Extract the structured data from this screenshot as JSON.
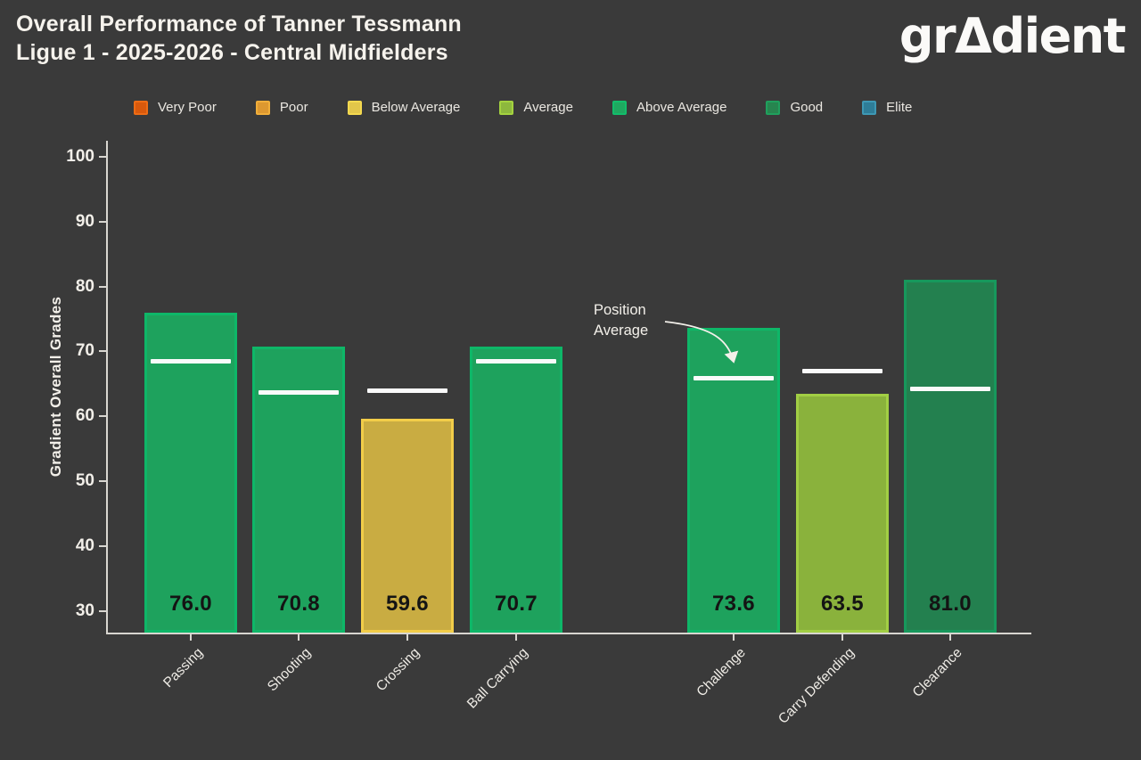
{
  "header": {
    "title_line1": "Overall Performance of Tanner Tessmann",
    "title_line2": "Ligue 1 - 2025-2026 - Central Midfielders",
    "logo": {
      "pre": "gr",
      "triangle": "Δ",
      "post": "dient"
    }
  },
  "legend": {
    "items": [
      {
        "label": "Very Poor",
        "fill": "#d9590c",
        "edge": "#ee6c15"
      },
      {
        "label": "Poor",
        "fill": "#dd9830",
        "edge": "#f0ae3a"
      },
      {
        "label": "Below Average",
        "fill": "#e2c64a",
        "edge": "#f4d94f"
      },
      {
        "label": "Average",
        "fill": "#8db83d",
        "edge": "#a4d23f"
      },
      {
        "label": "Above Average",
        "fill": "#1fa860",
        "edge": "#12bd6b"
      },
      {
        "label": "Good",
        "fill": "#27854f",
        "edge": "#1fa05d"
      },
      {
        "label": "Elite",
        "fill": "#2e7d98",
        "edge": "#3e98b4"
      }
    ]
  },
  "chart_data": {
    "type": "bar",
    "title": "Overall Performance of Tanner Tessmann — Ligue 1 - 2025-2026 - Central Midfielders",
    "ylabel": "Gradient Overall Grades",
    "xlabel": "",
    "ylim": [
      26.5,
      102
    ],
    "yticks": [
      30,
      40,
      50,
      60,
      70,
      80,
      90,
      100
    ],
    "grid": false,
    "legend_position": "top",
    "legend_entries": [
      "Very Poor",
      "Poor",
      "Below Average",
      "Average",
      "Above Average",
      "Good",
      "Elite"
    ],
    "categories": [
      "Passing",
      "Shooting",
      "Crossing",
      "Ball Carrying",
      "Challenge",
      "Carry Defending",
      "Clearance"
    ],
    "values": [
      76.0,
      70.8,
      59.6,
      70.7,
      73.6,
      63.5,
      81.0
    ],
    "grades": [
      "above_average",
      "above_average",
      "below_average",
      "above_average",
      "above_average",
      "average",
      "good"
    ],
    "position_average": [
      68.5,
      63.7,
      64.0,
      68.5,
      65.9,
      67.0,
      64.2
    ],
    "annotation": {
      "label": "Position Average",
      "points_to": "Challenge position average line"
    }
  },
  "grade_colors": {
    "above_average": {
      "fill": "#1ea25d",
      "edge": "#0eb768"
    },
    "below_average": {
      "fill": "#c9ac42",
      "edge": "#f2cd49"
    },
    "average": {
      "fill": "#8ab23c",
      "edge": "#a2cf44"
    },
    "good": {
      "fill": "#23804f",
      "edge": "#17985c"
    }
  },
  "colors": {
    "background": "#3a3a3a",
    "text": "#f2efe9",
    "axis": "#d8d6d0",
    "bar_value_text": "#141414",
    "avg_line": "#fafafa"
  }
}
